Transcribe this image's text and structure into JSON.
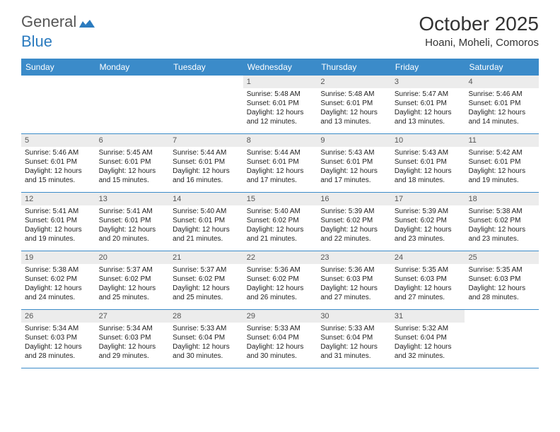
{
  "logo": {
    "text1": "General",
    "text2": "Blue",
    "icon_color": "#2b7bbf",
    "text_color_gray": "#555555"
  },
  "title": "October 2025",
  "location": "Hoani, Moheli, Comoros",
  "colors": {
    "header_bg": "#3b8bc9",
    "header_text": "#ffffff",
    "daynum_bg": "#ececec",
    "daynum_text": "#555555",
    "cell_text": "#222222",
    "divider": "#3b8bc9",
    "page_bg": "#ffffff"
  },
  "fonts": {
    "title_size": 28,
    "location_size": 15,
    "header_size": 12,
    "daynum_size": 11,
    "body_size": 10
  },
  "day_names": [
    "Sunday",
    "Monday",
    "Tuesday",
    "Wednesday",
    "Thursday",
    "Friday",
    "Saturday"
  ],
  "weeks": [
    [
      {
        "num": "",
        "sunrise": "",
        "sunset": "",
        "daylight": ""
      },
      {
        "num": "",
        "sunrise": "",
        "sunset": "",
        "daylight": ""
      },
      {
        "num": "",
        "sunrise": "",
        "sunset": "",
        "daylight": ""
      },
      {
        "num": "1",
        "sunrise": "Sunrise: 5:48 AM",
        "sunset": "Sunset: 6:01 PM",
        "daylight": "Daylight: 12 hours and 12 minutes."
      },
      {
        "num": "2",
        "sunrise": "Sunrise: 5:48 AM",
        "sunset": "Sunset: 6:01 PM",
        "daylight": "Daylight: 12 hours and 13 minutes."
      },
      {
        "num": "3",
        "sunrise": "Sunrise: 5:47 AM",
        "sunset": "Sunset: 6:01 PM",
        "daylight": "Daylight: 12 hours and 13 minutes."
      },
      {
        "num": "4",
        "sunrise": "Sunrise: 5:46 AM",
        "sunset": "Sunset: 6:01 PM",
        "daylight": "Daylight: 12 hours and 14 minutes."
      }
    ],
    [
      {
        "num": "5",
        "sunrise": "Sunrise: 5:46 AM",
        "sunset": "Sunset: 6:01 PM",
        "daylight": "Daylight: 12 hours and 15 minutes."
      },
      {
        "num": "6",
        "sunrise": "Sunrise: 5:45 AM",
        "sunset": "Sunset: 6:01 PM",
        "daylight": "Daylight: 12 hours and 15 minutes."
      },
      {
        "num": "7",
        "sunrise": "Sunrise: 5:44 AM",
        "sunset": "Sunset: 6:01 PM",
        "daylight": "Daylight: 12 hours and 16 minutes."
      },
      {
        "num": "8",
        "sunrise": "Sunrise: 5:44 AM",
        "sunset": "Sunset: 6:01 PM",
        "daylight": "Daylight: 12 hours and 17 minutes."
      },
      {
        "num": "9",
        "sunrise": "Sunrise: 5:43 AM",
        "sunset": "Sunset: 6:01 PM",
        "daylight": "Daylight: 12 hours and 17 minutes."
      },
      {
        "num": "10",
        "sunrise": "Sunrise: 5:43 AM",
        "sunset": "Sunset: 6:01 PM",
        "daylight": "Daylight: 12 hours and 18 minutes."
      },
      {
        "num": "11",
        "sunrise": "Sunrise: 5:42 AM",
        "sunset": "Sunset: 6:01 PM",
        "daylight": "Daylight: 12 hours and 19 minutes."
      }
    ],
    [
      {
        "num": "12",
        "sunrise": "Sunrise: 5:41 AM",
        "sunset": "Sunset: 6:01 PM",
        "daylight": "Daylight: 12 hours and 19 minutes."
      },
      {
        "num": "13",
        "sunrise": "Sunrise: 5:41 AM",
        "sunset": "Sunset: 6:01 PM",
        "daylight": "Daylight: 12 hours and 20 minutes."
      },
      {
        "num": "14",
        "sunrise": "Sunrise: 5:40 AM",
        "sunset": "Sunset: 6:01 PM",
        "daylight": "Daylight: 12 hours and 21 minutes."
      },
      {
        "num": "15",
        "sunrise": "Sunrise: 5:40 AM",
        "sunset": "Sunset: 6:02 PM",
        "daylight": "Daylight: 12 hours and 21 minutes."
      },
      {
        "num": "16",
        "sunrise": "Sunrise: 5:39 AM",
        "sunset": "Sunset: 6:02 PM",
        "daylight": "Daylight: 12 hours and 22 minutes."
      },
      {
        "num": "17",
        "sunrise": "Sunrise: 5:39 AM",
        "sunset": "Sunset: 6:02 PM",
        "daylight": "Daylight: 12 hours and 23 minutes."
      },
      {
        "num": "18",
        "sunrise": "Sunrise: 5:38 AM",
        "sunset": "Sunset: 6:02 PM",
        "daylight": "Daylight: 12 hours and 23 minutes."
      }
    ],
    [
      {
        "num": "19",
        "sunrise": "Sunrise: 5:38 AM",
        "sunset": "Sunset: 6:02 PM",
        "daylight": "Daylight: 12 hours and 24 minutes."
      },
      {
        "num": "20",
        "sunrise": "Sunrise: 5:37 AM",
        "sunset": "Sunset: 6:02 PM",
        "daylight": "Daylight: 12 hours and 25 minutes."
      },
      {
        "num": "21",
        "sunrise": "Sunrise: 5:37 AM",
        "sunset": "Sunset: 6:02 PM",
        "daylight": "Daylight: 12 hours and 25 minutes."
      },
      {
        "num": "22",
        "sunrise": "Sunrise: 5:36 AM",
        "sunset": "Sunset: 6:02 PM",
        "daylight": "Daylight: 12 hours and 26 minutes."
      },
      {
        "num": "23",
        "sunrise": "Sunrise: 5:36 AM",
        "sunset": "Sunset: 6:03 PM",
        "daylight": "Daylight: 12 hours and 27 minutes."
      },
      {
        "num": "24",
        "sunrise": "Sunrise: 5:35 AM",
        "sunset": "Sunset: 6:03 PM",
        "daylight": "Daylight: 12 hours and 27 minutes."
      },
      {
        "num": "25",
        "sunrise": "Sunrise: 5:35 AM",
        "sunset": "Sunset: 6:03 PM",
        "daylight": "Daylight: 12 hours and 28 minutes."
      }
    ],
    [
      {
        "num": "26",
        "sunrise": "Sunrise: 5:34 AM",
        "sunset": "Sunset: 6:03 PM",
        "daylight": "Daylight: 12 hours and 28 minutes."
      },
      {
        "num": "27",
        "sunrise": "Sunrise: 5:34 AM",
        "sunset": "Sunset: 6:03 PM",
        "daylight": "Daylight: 12 hours and 29 minutes."
      },
      {
        "num": "28",
        "sunrise": "Sunrise: 5:33 AM",
        "sunset": "Sunset: 6:04 PM",
        "daylight": "Daylight: 12 hours and 30 minutes."
      },
      {
        "num": "29",
        "sunrise": "Sunrise: 5:33 AM",
        "sunset": "Sunset: 6:04 PM",
        "daylight": "Daylight: 12 hours and 30 minutes."
      },
      {
        "num": "30",
        "sunrise": "Sunrise: 5:33 AM",
        "sunset": "Sunset: 6:04 PM",
        "daylight": "Daylight: 12 hours and 31 minutes."
      },
      {
        "num": "31",
        "sunrise": "Sunrise: 5:32 AM",
        "sunset": "Sunset: 6:04 PM",
        "daylight": "Daylight: 12 hours and 32 minutes."
      },
      {
        "num": "",
        "sunrise": "",
        "sunset": "",
        "daylight": ""
      }
    ]
  ]
}
